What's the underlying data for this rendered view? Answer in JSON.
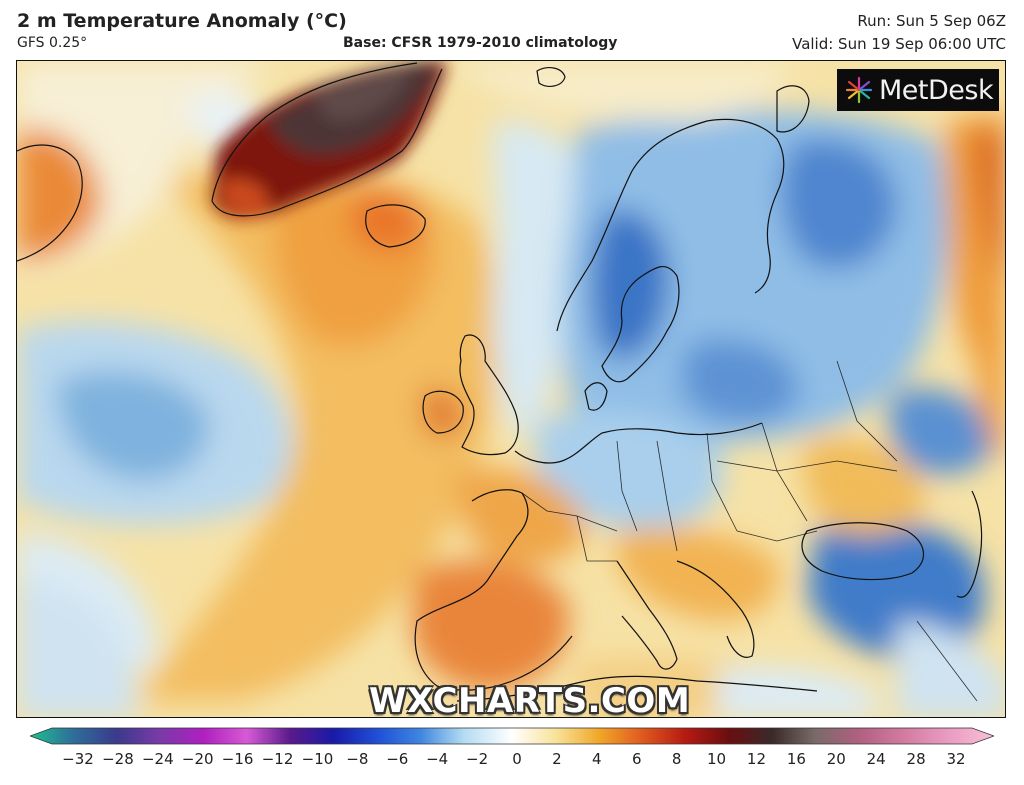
{
  "header": {
    "title": "2 m Temperature Anomaly (°C)",
    "model": "GFS 0.25°",
    "base": "Base: CFSR 1979-2010 climatology",
    "run": "Run: Sun 5 Sep 06Z",
    "valid": "Valid: Sun 19 Sep 06:00 UTC"
  },
  "logo": {
    "text": "MetDesk",
    "icon": "starburst-logo-icon"
  },
  "watermark": {
    "text": "WXCHARTS.COM"
  },
  "legend": {
    "ticks": [
      "−32",
      "−28",
      "−24",
      "−20",
      "−16",
      "−12",
      "−10",
      "−8",
      "−6",
      "−4",
      "−2",
      "0",
      "2",
      "4",
      "6",
      "8",
      "10",
      "12",
      "16",
      "20",
      "24",
      "28",
      "32"
    ],
    "tick_colors": [
      "#1fbf8f",
      "#2e6e9a",
      "#3a3a8c",
      "#7a3aa8",
      "#b01fbf",
      "#d65ad6",
      "#5a1a8a",
      "#1a1aa8",
      "#1f4fd6",
      "#3f86e0",
      "#b4dcf2",
      "#ffffff",
      "#f8e39a",
      "#f0a82a",
      "#e05a1f",
      "#b51a12",
      "#6a0e10",
      "#3a2a2a",
      "#7a6a6a",
      "#b06080",
      "#d27aa0",
      "#e89ac0",
      "#f8c0d8"
    ]
  },
  "colors": {
    "ocean_neutral": "#f7f2df",
    "warm_anomaly": "#f3b457",
    "strong_warm": "#d6581c",
    "extreme_warm": "#5a0f10",
    "cold_anomaly": "#8fbfe6",
    "strong_cold": "#2f6fc8",
    "coastline": "#111111"
  }
}
